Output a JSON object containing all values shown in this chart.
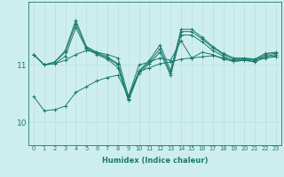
{
  "xlabel": "Humidex (Indice chaleur)",
  "x": [
    0,
    1,
    2,
    3,
    4,
    5,
    6,
    7,
    8,
    9,
    10,
    11,
    12,
    13,
    14,
    15,
    16,
    17,
    18,
    19,
    20,
    21,
    22,
    23
  ],
  "series": [
    [
      10.45,
      10.2,
      10.22,
      10.28,
      10.52,
      10.62,
      10.72,
      10.78,
      10.82,
      10.45,
      10.88,
      10.95,
      11.02,
      11.05,
      11.1,
      11.12,
      11.14,
      11.16,
      11.12,
      11.08,
      11.1,
      11.1,
      11.14,
      11.15
    ],
    [
      11.18,
      11.0,
      11.02,
      11.08,
      11.18,
      11.25,
      11.22,
      11.18,
      11.12,
      10.45,
      11.0,
      11.05,
      11.12,
      11.08,
      11.42,
      11.12,
      11.22,
      11.18,
      11.1,
      11.06,
      11.08,
      11.06,
      11.12,
      11.14
    ],
    [
      11.18,
      11.0,
      11.05,
      11.22,
      11.72,
      11.3,
      11.2,
      11.12,
      11.0,
      10.38,
      10.88,
      11.05,
      11.28,
      10.85,
      11.58,
      11.58,
      11.45,
      11.3,
      11.18,
      11.1,
      11.1,
      11.08,
      11.18,
      11.2
    ],
    [
      11.18,
      11.0,
      11.05,
      11.25,
      11.78,
      11.32,
      11.22,
      11.14,
      11.02,
      10.4,
      10.9,
      11.08,
      11.35,
      10.9,
      11.62,
      11.62,
      11.48,
      11.32,
      11.2,
      11.12,
      11.12,
      11.1,
      11.2,
      11.22
    ],
    [
      11.18,
      11.0,
      11.02,
      11.15,
      11.65,
      11.28,
      11.18,
      11.1,
      10.95,
      10.38,
      10.85,
      11.02,
      11.22,
      10.82,
      11.52,
      11.52,
      11.4,
      11.25,
      11.15,
      11.06,
      11.08,
      11.05,
      11.15,
      11.18
    ]
  ],
  "line_color": "#1a7a6e",
  "background_color": "#ceeeed",
  "grid_color": "#b8dede",
  "yticks": [
    10,
    11
  ],
  "ylim": [
    9.6,
    12.1
  ],
  "xlim": [
    -0.5,
    23.5
  ],
  "figsize": [
    3.2,
    2.0
  ],
  "dpi": 100
}
